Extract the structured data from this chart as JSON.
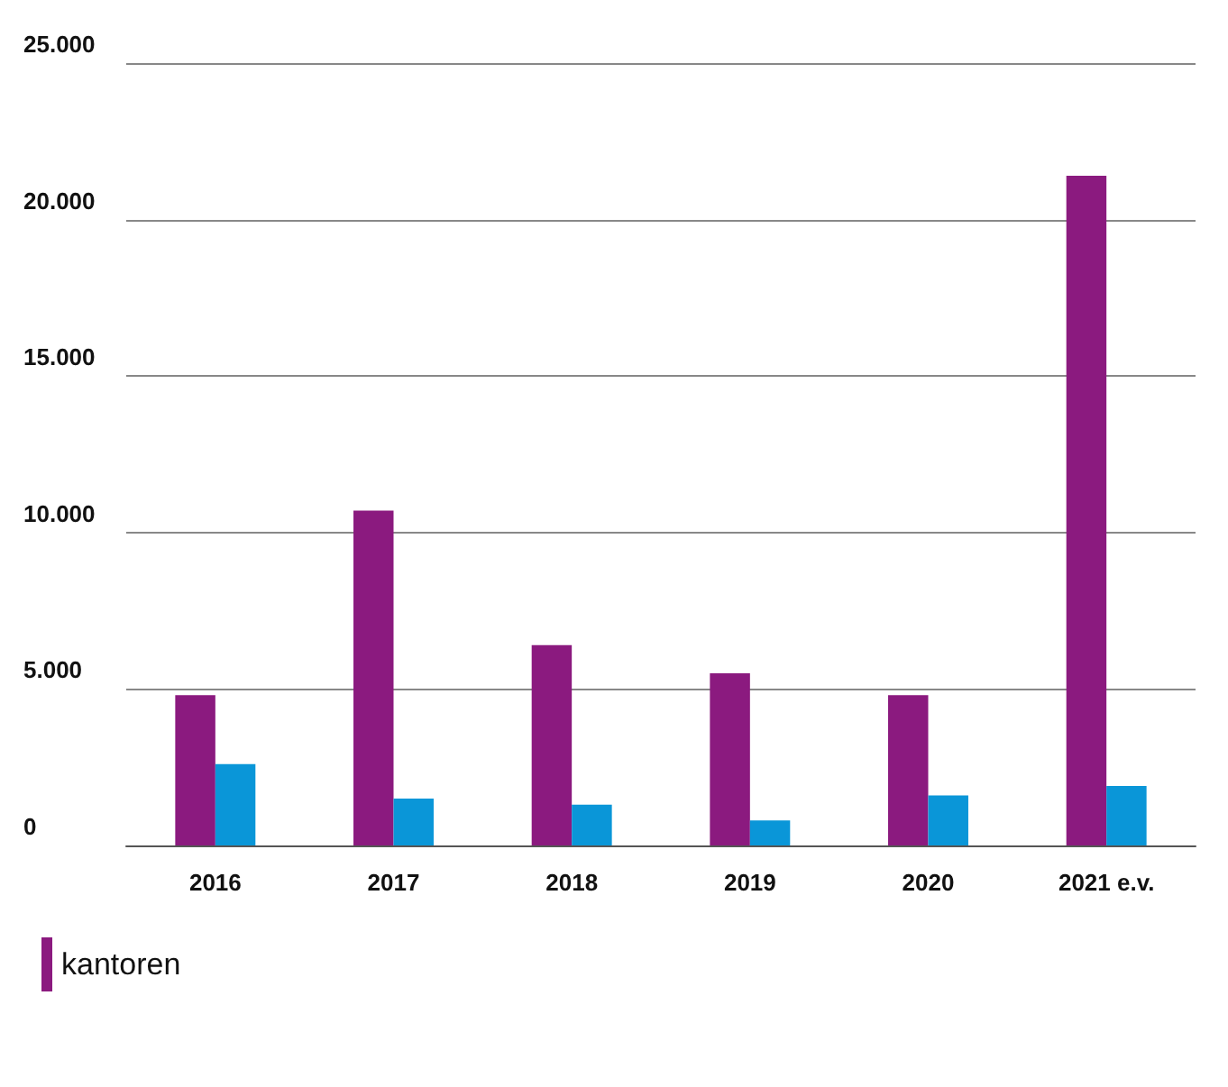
{
  "chart_data": {
    "type": "bar",
    "categories": [
      "2016",
      "2017",
      "2018",
      "2019",
      "2020",
      "2021 e.v."
    ],
    "series": [
      {
        "name": "kantoren",
        "color": "#8b1a7f",
        "values": [
          4800,
          10700,
          6400,
          5500,
          4800,
          21400
        ]
      },
      {
        "color": "#0a96d8",
        "values": [
          2600,
          1500,
          1300,
          800,
          1600,
          1900
        ]
      }
    ],
    "ylim": [
      0,
      25000
    ],
    "yticks": [
      {
        "value": 0,
        "label": "0"
      },
      {
        "value": 5000,
        "label": "5.000"
      },
      {
        "value": 10000,
        "label": "10.000"
      },
      {
        "value": 15000,
        "label": "15.000"
      },
      {
        "value": 20000,
        "label": "20.000"
      },
      {
        "value": 25000,
        "label": "25.000"
      }
    ],
    "grid": "y",
    "legend": "bottom left"
  }
}
